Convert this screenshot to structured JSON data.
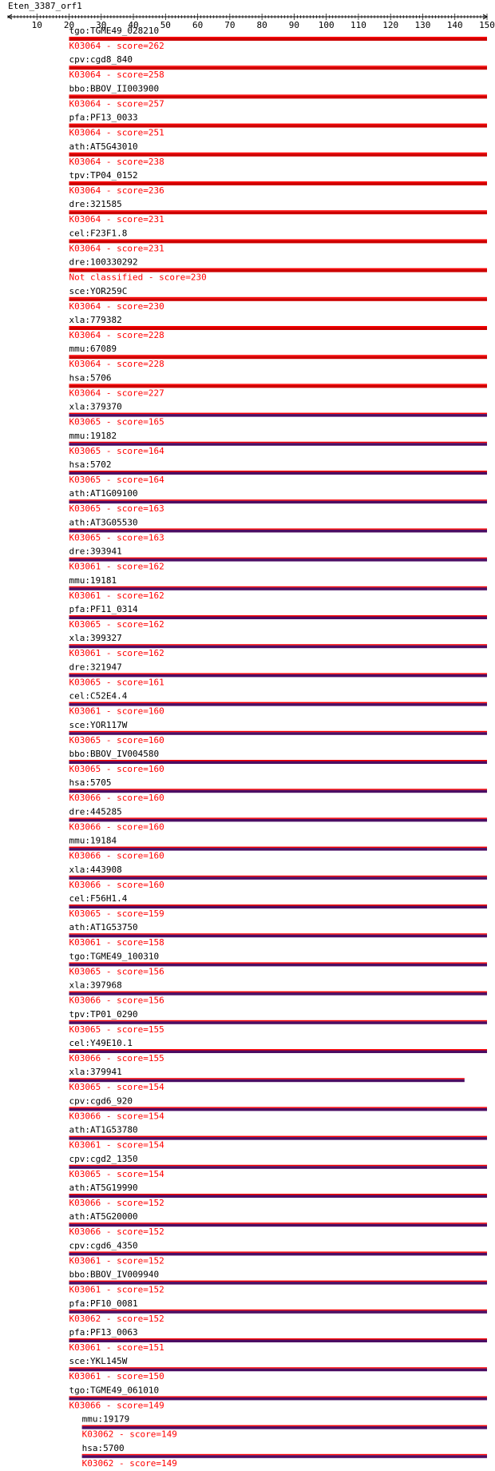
{
  "title": "Eten_3387_orf1",
  "axis": {
    "min": 1,
    "max": 150,
    "tick_labels": [
      "10",
      "20",
      "30",
      "40",
      "50",
      "60",
      "70",
      "80",
      "90",
      "100",
      "110",
      "120",
      "130",
      "140",
      "150"
    ]
  },
  "colors": {
    "text": "#000000",
    "ko_text": "#ff0000",
    "bar_top": "#ff0000",
    "bar_red": "#cc0000",
    "bar_purple": "#4b0e64"
  },
  "hits": [
    {
      "gene": "tgo:TGME49_028210",
      "ko": "K03064 - score=262",
      "start": 20,
      "end": 150,
      "color": "red"
    },
    {
      "gene": "cpv:cgd8_840",
      "ko": "K03064 - score=258",
      "start": 20,
      "end": 150,
      "color": "red"
    },
    {
      "gene": "bbo:BBOV_II003900",
      "ko": "K03064 - score=257",
      "start": 20,
      "end": 150,
      "color": "red"
    },
    {
      "gene": "pfa:PF13_0033",
      "ko": "K03064 - score=251",
      "start": 20,
      "end": 150,
      "color": "red"
    },
    {
      "gene": "ath:AT5G43010",
      "ko": "K03064 - score=238",
      "start": 20,
      "end": 150,
      "color": "red"
    },
    {
      "gene": "tpv:TP04_0152",
      "ko": "K03064 - score=236",
      "start": 20,
      "end": 150,
      "color": "red"
    },
    {
      "gene": "dre:321585",
      "ko": "K03064 - score=231",
      "start": 20,
      "end": 150,
      "color": "red"
    },
    {
      "gene": "cel:F23F1.8",
      "ko": "K03064 - score=231",
      "start": 20,
      "end": 150,
      "color": "red"
    },
    {
      "gene": "dre:100330292",
      "ko": "Not classified - score=230",
      "start": 20,
      "end": 150,
      "color": "red"
    },
    {
      "gene": "sce:YOR259C",
      "ko": "K03064 - score=230",
      "start": 20,
      "end": 150,
      "color": "red"
    },
    {
      "gene": "xla:779382",
      "ko": "K03064 - score=228",
      "start": 20,
      "end": 150,
      "color": "red"
    },
    {
      "gene": "mmu:67089",
      "ko": "K03064 - score=228",
      "start": 20,
      "end": 150,
      "color": "red"
    },
    {
      "gene": "hsa:5706",
      "ko": "K03064 - score=227",
      "start": 20,
      "end": 150,
      "color": "red"
    },
    {
      "gene": "xla:379370",
      "ko": "K03065 - score=165",
      "start": 20,
      "end": 150,
      "color": "purple"
    },
    {
      "gene": "mmu:19182",
      "ko": "K03065 - score=164",
      "start": 20,
      "end": 150,
      "color": "purple"
    },
    {
      "gene": "hsa:5702",
      "ko": "K03065 - score=164",
      "start": 20,
      "end": 150,
      "color": "purple"
    },
    {
      "gene": "ath:AT1G09100",
      "ko": "K03065 - score=163",
      "start": 20,
      "end": 150,
      "color": "purple"
    },
    {
      "gene": "ath:AT3G05530",
      "ko": "K03065 - score=163",
      "start": 20,
      "end": 150,
      "color": "purple"
    },
    {
      "gene": "dre:393941",
      "ko": "K03061 - score=162",
      "start": 20,
      "end": 150,
      "color": "purple"
    },
    {
      "gene": "mmu:19181",
      "ko": "K03061 - score=162",
      "start": 20,
      "end": 150,
      "color": "purple"
    },
    {
      "gene": "pfa:PF11_0314",
      "ko": "K03065 - score=162",
      "start": 20,
      "end": 150,
      "color": "purple"
    },
    {
      "gene": "xla:399327",
      "ko": "K03061 - score=162",
      "start": 20,
      "end": 150,
      "color": "purple"
    },
    {
      "gene": "dre:321947",
      "ko": "K03065 - score=161",
      "start": 20,
      "end": 150,
      "color": "purple"
    },
    {
      "gene": "cel:C52E4.4",
      "ko": "K03061 - score=160",
      "start": 20,
      "end": 150,
      "color": "purple"
    },
    {
      "gene": "sce:YOR117W",
      "ko": "K03065 - score=160",
      "start": 20,
      "end": 150,
      "color": "purple"
    },
    {
      "gene": "bbo:BBOV_IV004580",
      "ko": "K03065 - score=160",
      "start": 20,
      "end": 150,
      "color": "purple"
    },
    {
      "gene": "hsa:5705",
      "ko": "K03066 - score=160",
      "start": 20,
      "end": 150,
      "color": "purple"
    },
    {
      "gene": "dre:445285",
      "ko": "K03066 - score=160",
      "start": 20,
      "end": 150,
      "color": "purple"
    },
    {
      "gene": "mmu:19184",
      "ko": "K03066 - score=160",
      "start": 20,
      "end": 150,
      "color": "purple"
    },
    {
      "gene": "xla:443908",
      "ko": "K03066 - score=160",
      "start": 20,
      "end": 150,
      "color": "purple"
    },
    {
      "gene": "cel:F56H1.4",
      "ko": "K03065 - score=159",
      "start": 20,
      "end": 150,
      "color": "purple"
    },
    {
      "gene": "ath:AT1G53750",
      "ko": "K03061 - score=158",
      "start": 20,
      "end": 150,
      "color": "purple"
    },
    {
      "gene": "tgo:TGME49_100310",
      "ko": "K03065 - score=156",
      "start": 20,
      "end": 150,
      "color": "purple"
    },
    {
      "gene": "xla:397968",
      "ko": "K03066 - score=156",
      "start": 20,
      "end": 150,
      "color": "purple"
    },
    {
      "gene": "tpv:TP01_0290",
      "ko": "K03065 - score=155",
      "start": 20,
      "end": 150,
      "color": "purple"
    },
    {
      "gene": "cel:Y49E10.1",
      "ko": "K03066 - score=155",
      "start": 20,
      "end": 150,
      "color": "purple"
    },
    {
      "gene": "xla:379941",
      "ko": "K03065 - score=154",
      "start": 20,
      "end": 143,
      "color": "purple"
    },
    {
      "gene": "cpv:cgd6_920",
      "ko": "K03066 - score=154",
      "start": 20,
      "end": 150,
      "color": "purple"
    },
    {
      "gene": "ath:AT1G53780",
      "ko": "K03061 - score=154",
      "start": 20,
      "end": 150,
      "color": "purple"
    },
    {
      "gene": "cpv:cgd2_1350",
      "ko": "K03065 - score=154",
      "start": 20,
      "end": 150,
      "color": "purple"
    },
    {
      "gene": "ath:AT5G19990",
      "ko": "K03066 - score=152",
      "start": 20,
      "end": 150,
      "color": "purple"
    },
    {
      "gene": "ath:AT5G20000",
      "ko": "K03066 - score=152",
      "start": 20,
      "end": 150,
      "color": "purple"
    },
    {
      "gene": "cpv:cgd6_4350",
      "ko": "K03061 - score=152",
      "start": 20,
      "end": 150,
      "color": "purple"
    },
    {
      "gene": "bbo:BBOV_IV009940",
      "ko": "K03061 - score=152",
      "start": 20,
      "end": 150,
      "color": "purple"
    },
    {
      "gene": "pfa:PF10_0081",
      "ko": "K03062 - score=152",
      "start": 20,
      "end": 150,
      "color": "purple"
    },
    {
      "gene": "pfa:PF13_0063",
      "ko": "K03061 - score=151",
      "start": 20,
      "end": 150,
      "color": "purple"
    },
    {
      "gene": "sce:YKL145W",
      "ko": "K03061 - score=150",
      "start": 20,
      "end": 150,
      "color": "purple"
    },
    {
      "gene": "tgo:TGME49_061010",
      "ko": "K03066 - score=149",
      "start": 20,
      "end": 150,
      "color": "purple"
    },
    {
      "gene": "mmu:19179",
      "ko": "K03062 - score=149",
      "start": 24,
      "end": 150,
      "color": "purple"
    },
    {
      "gene": "hsa:5700",
      "ko": "K03062 - score=149",
      "start": 24,
      "end": 150,
      "color": "purple"
    }
  ]
}
